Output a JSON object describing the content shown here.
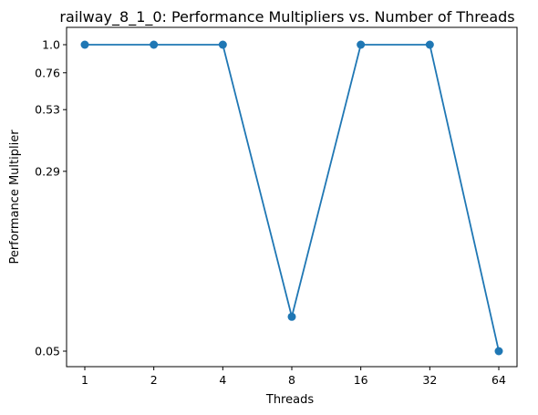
{
  "chart_data": {
    "type": "line",
    "title": "railway_8_1_0: Performance Multipliers vs. Number of Threads",
    "xlabel": "Threads",
    "ylabel": "Performance Multiplier",
    "categories": [
      "1",
      "2",
      "4",
      "8",
      "16",
      "32",
      "64"
    ],
    "series": [
      {
        "values": [
          1.0,
          1.0,
          1.0,
          0.07,
          1.0,
          1.0,
          0.05
        ]
      }
    ],
    "yticks": [
      1.0,
      0.76,
      0.53,
      0.29,
      0.05
    ],
    "ytick_labels": [
      "1.0",
      "0.76",
      "0.53",
      "0.29",
      "0.05"
    ],
    "y_scale": "log",
    "grid": false,
    "line_color": "#1f77b4"
  }
}
